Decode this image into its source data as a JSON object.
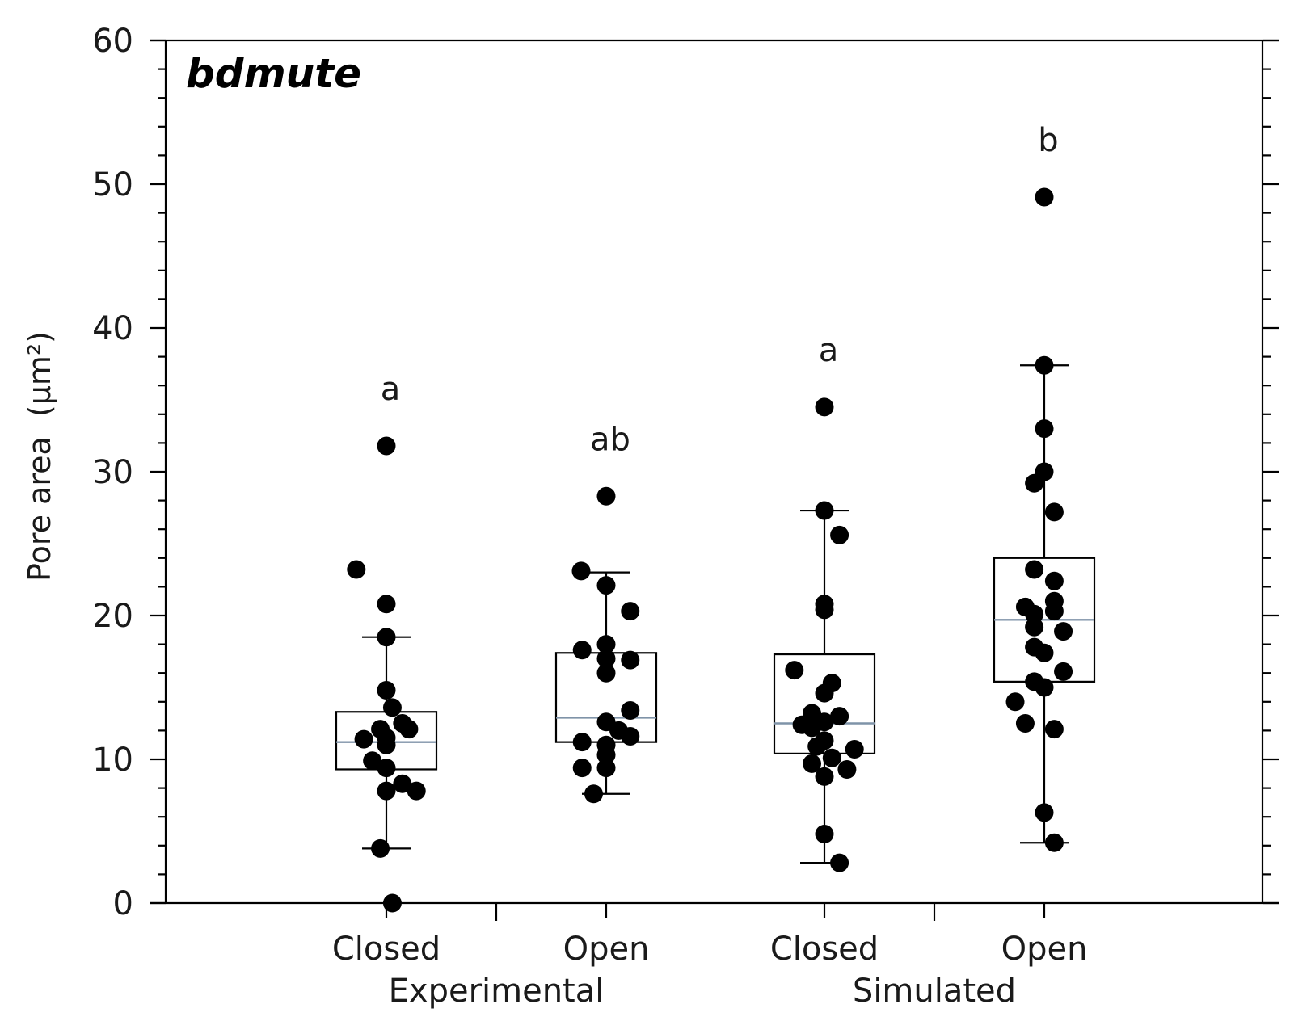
{
  "chart_data": {
    "type": "box",
    "title": "bdmute",
    "ylabel": "Pore area",
    "ylabel_unit": "(μm²)",
    "ylim": [
      0,
      60
    ],
    "yticks": [
      0,
      10,
      20,
      30,
      40,
      50,
      60
    ],
    "legend": "none",
    "grid": false,
    "groups": [
      {
        "label": "Experimental",
        "categories": [
          "Closed",
          "Open"
        ]
      },
      {
        "label": "Simulated",
        "categories": [
          "Closed",
          "Open"
        ]
      }
    ],
    "boxes": [
      {
        "group": "Experimental",
        "category": "Closed",
        "whisker_low": 3.8,
        "q1": 9.3,
        "median": 11.2,
        "q3": 13.3,
        "whisker_high": 18.5,
        "significance": "a",
        "points": [
          {
            "dx": -0.6,
            "y": 23.2
          },
          {
            "dx": 0.0,
            "y": 31.8
          },
          {
            "dx": 0.0,
            "y": 20.8
          },
          {
            "dx": 0.0,
            "y": 18.5
          },
          {
            "dx": 0.0,
            "y": 14.8
          },
          {
            "dx": 0.12,
            "y": 13.6
          },
          {
            "dx": 0.32,
            "y": 12.5
          },
          {
            "dx": 0.45,
            "y": 12.1
          },
          {
            "dx": -0.12,
            "y": 12.1
          },
          {
            "dx": -0.45,
            "y": 11.4
          },
          {
            "dx": 0.0,
            "y": 11.5
          },
          {
            "dx": 0.0,
            "y": 11.0
          },
          {
            "dx": -0.28,
            "y": 9.9
          },
          {
            "dx": 0.0,
            "y": 9.4
          },
          {
            "dx": 0.32,
            "y": 8.3
          },
          {
            "dx": 0.6,
            "y": 7.8
          },
          {
            "dx": 0.0,
            "y": 7.8
          },
          {
            "dx": -0.12,
            "y": 3.8
          },
          {
            "dx": 0.12,
            "y": 0.0
          }
        ]
      },
      {
        "group": "Experimental",
        "category": "Open",
        "whisker_low": 7.6,
        "q1": 11.2,
        "median": 12.9,
        "q3": 17.4,
        "whisker_high": 23.0,
        "significance": "ab",
        "points": [
          {
            "dx": 0.0,
            "y": 28.3
          },
          {
            "dx": -0.5,
            "y": 23.1
          },
          {
            "dx": 0.0,
            "y": 22.1
          },
          {
            "dx": 0.48,
            "y": 20.3
          },
          {
            "dx": 0.0,
            "y": 18.0
          },
          {
            "dx": -0.48,
            "y": 17.6
          },
          {
            "dx": 0.0,
            "y": 17.0
          },
          {
            "dx": 0.48,
            "y": 16.9
          },
          {
            "dx": 0.0,
            "y": 16.0
          },
          {
            "dx": 0.48,
            "y": 13.4
          },
          {
            "dx": 0.0,
            "y": 12.6
          },
          {
            "dx": 0.25,
            "y": 12.0
          },
          {
            "dx": 0.48,
            "y": 11.6
          },
          {
            "dx": -0.48,
            "y": 11.2
          },
          {
            "dx": 0.0,
            "y": 11.0
          },
          {
            "dx": 0.0,
            "y": 10.3
          },
          {
            "dx": -0.48,
            "y": 9.4
          },
          {
            "dx": 0.0,
            "y": 9.4
          },
          {
            "dx": -0.25,
            "y": 7.6
          }
        ]
      },
      {
        "group": "Simulated",
        "category": "Closed",
        "whisker_low": 2.8,
        "q1": 10.4,
        "median": 12.5,
        "q3": 17.3,
        "whisker_high": 27.3,
        "significance": "a",
        "points": [
          {
            "dx": 0.0,
            "y": 34.5
          },
          {
            "dx": 0.0,
            "y": 27.3
          },
          {
            "dx": 0.3,
            "y": 25.6
          },
          {
            "dx": 0.0,
            "y": 20.8
          },
          {
            "dx": 0.0,
            "y": 20.4
          },
          {
            "dx": -0.6,
            "y": 16.2
          },
          {
            "dx": 0.15,
            "y": 15.3
          },
          {
            "dx": 0.0,
            "y": 14.6
          },
          {
            "dx": -0.25,
            "y": 13.2
          },
          {
            "dx": 0.3,
            "y": 13.0
          },
          {
            "dx": -0.45,
            "y": 12.4
          },
          {
            "dx": 0.0,
            "y": 12.6
          },
          {
            "dx": -0.25,
            "y": 12.2
          },
          {
            "dx": 0.0,
            "y": 11.3
          },
          {
            "dx": -0.15,
            "y": 10.9
          },
          {
            "dx": 0.6,
            "y": 10.7
          },
          {
            "dx": 0.15,
            "y": 10.1
          },
          {
            "dx": -0.25,
            "y": 9.7
          },
          {
            "dx": 0.45,
            "y": 9.3
          },
          {
            "dx": 0.0,
            "y": 8.8
          },
          {
            "dx": 0.0,
            "y": 4.8
          },
          {
            "dx": 0.3,
            "y": 2.8
          }
        ]
      },
      {
        "group": "Simulated",
        "category": "Open",
        "whisker_low": 4.2,
        "q1": 15.4,
        "median": 19.7,
        "q3": 24.0,
        "whisker_high": 37.4,
        "significance": "b",
        "points": [
          {
            "dx": 0.0,
            "y": 49.1
          },
          {
            "dx": 0.0,
            "y": 37.4
          },
          {
            "dx": 0.0,
            "y": 33.0
          },
          {
            "dx": 0.0,
            "y": 30.0
          },
          {
            "dx": -0.2,
            "y": 29.2
          },
          {
            "dx": 0.2,
            "y": 27.2
          },
          {
            "dx": -0.2,
            "y": 23.2
          },
          {
            "dx": 0.2,
            "y": 22.4
          },
          {
            "dx": 0.2,
            "y": 21.0
          },
          {
            "dx": -0.38,
            "y": 20.6
          },
          {
            "dx": 0.2,
            "y": 20.3
          },
          {
            "dx": -0.2,
            "y": 20.1
          },
          {
            "dx": -0.2,
            "y": 19.2
          },
          {
            "dx": 0.38,
            "y": 18.9
          },
          {
            "dx": -0.2,
            "y": 17.8
          },
          {
            "dx": 0.0,
            "y": 17.4
          },
          {
            "dx": 0.38,
            "y": 16.1
          },
          {
            "dx": -0.2,
            "y": 15.4
          },
          {
            "dx": 0.0,
            "y": 15.0
          },
          {
            "dx": -0.58,
            "y": 14.0
          },
          {
            "dx": -0.38,
            "y": 12.5
          },
          {
            "dx": 0.2,
            "y": 12.1
          },
          {
            "dx": 0.0,
            "y": 6.3
          },
          {
            "dx": 0.2,
            "y": 4.2
          }
        ]
      }
    ]
  }
}
